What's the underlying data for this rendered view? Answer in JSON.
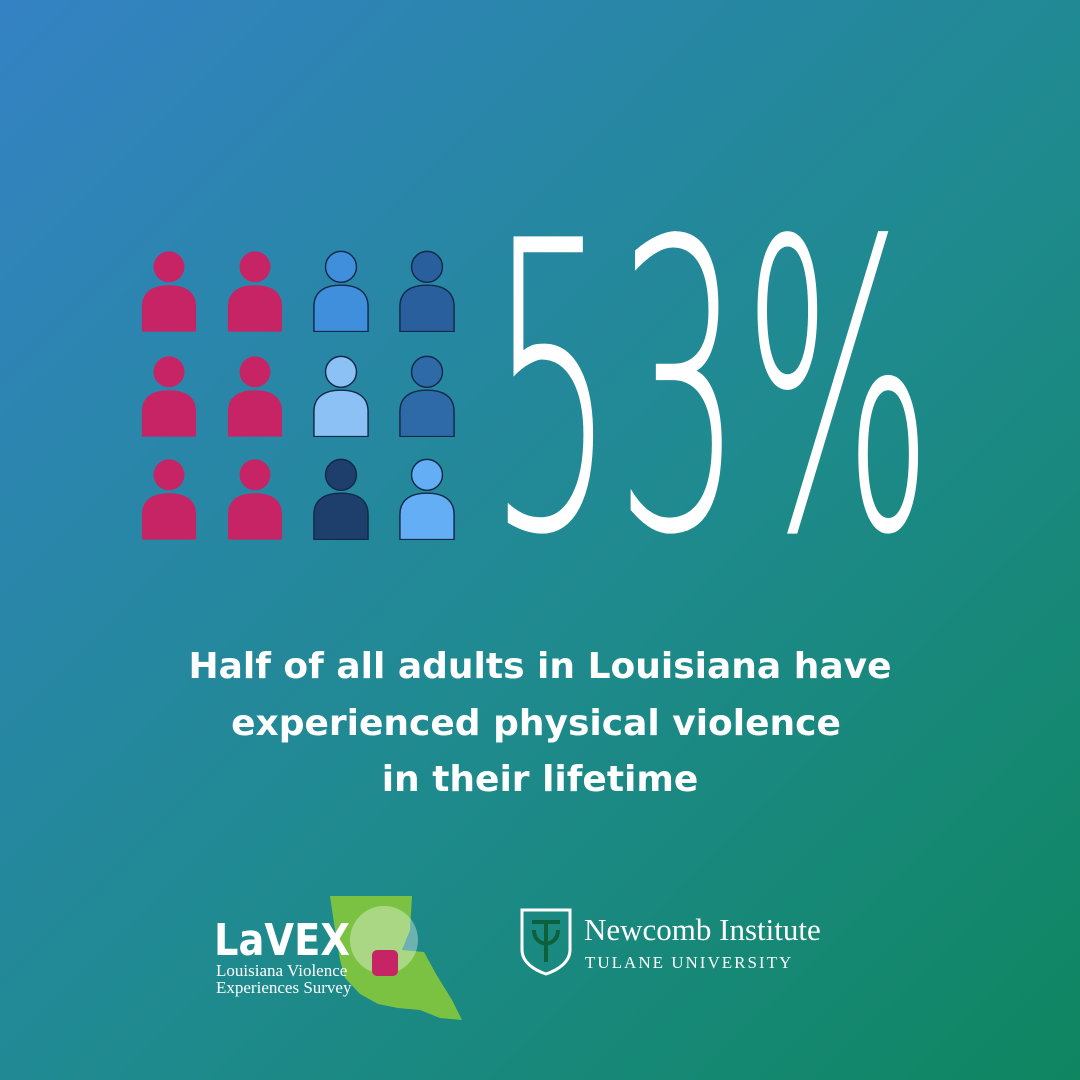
{
  "stat": "53%",
  "caption": [
    "Half of all adults in Louisiana have",
    "experienced physical violence",
    "in their lifetime"
  ],
  "logos": {
    "lavex": {
      "name": "LaVEX",
      "subtitle": [
        "Louisiana Violence",
        "Experiences Survey"
      ]
    },
    "newcomb": {
      "name": "Newcomb Institute",
      "subtitle": "TULANE UNIVERSITY"
    }
  }
}
